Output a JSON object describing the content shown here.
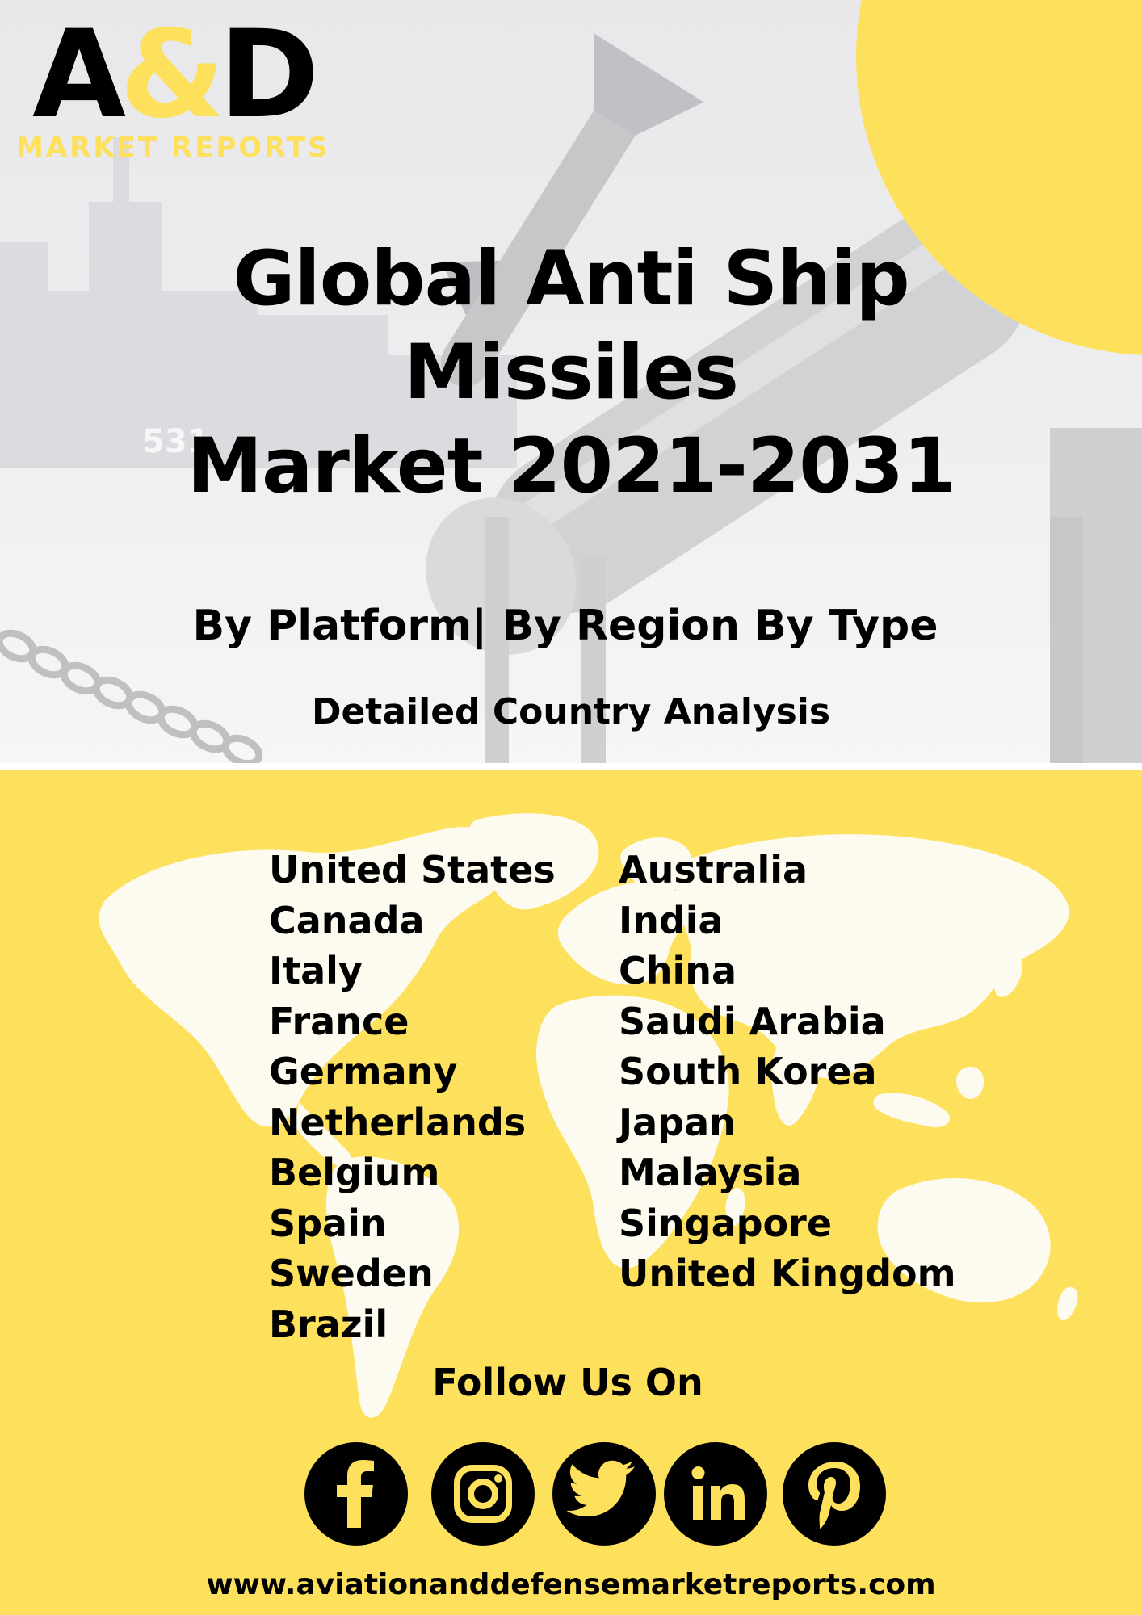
{
  "logo": {
    "main_a": "A",
    "main_amp": "&",
    "main_d": "D",
    "sub": "MARKET REPORTS"
  },
  "title": {
    "line1": "Global Anti Ship",
    "line2": "Missiles",
    "line3": "Market 2021-2031"
  },
  "subtitle": "By Platform| By Region  By Type",
  "detail": "Detailed Country Analysis",
  "countries": {
    "left": [
      "United States",
      "Canada",
      "Italy",
      "France",
      "Germany",
      "Netherlands",
      "Belgium",
      "Spain",
      "Sweden",
      "Brazil"
    ],
    "right": [
      "Australia",
      "India",
      "China",
      "Saudi Arabia",
      "South Korea",
      "Japan",
      "Malaysia",
      "Singapore",
      "United Kingdom"
    ]
  },
  "follow": "Follow Us On",
  "social_icons": [
    "facebook-icon",
    "instagram-icon",
    "twitter-icon",
    "linkedin-icon",
    "pinterest-icon"
  ],
  "photo_hull_number": "531",
  "url": "www.aviationanddefensemarketreports.com",
  "colors": {
    "accent_yellow": "#fde05c",
    "text": "#000000",
    "map_land": "#fdfbef"
  }
}
